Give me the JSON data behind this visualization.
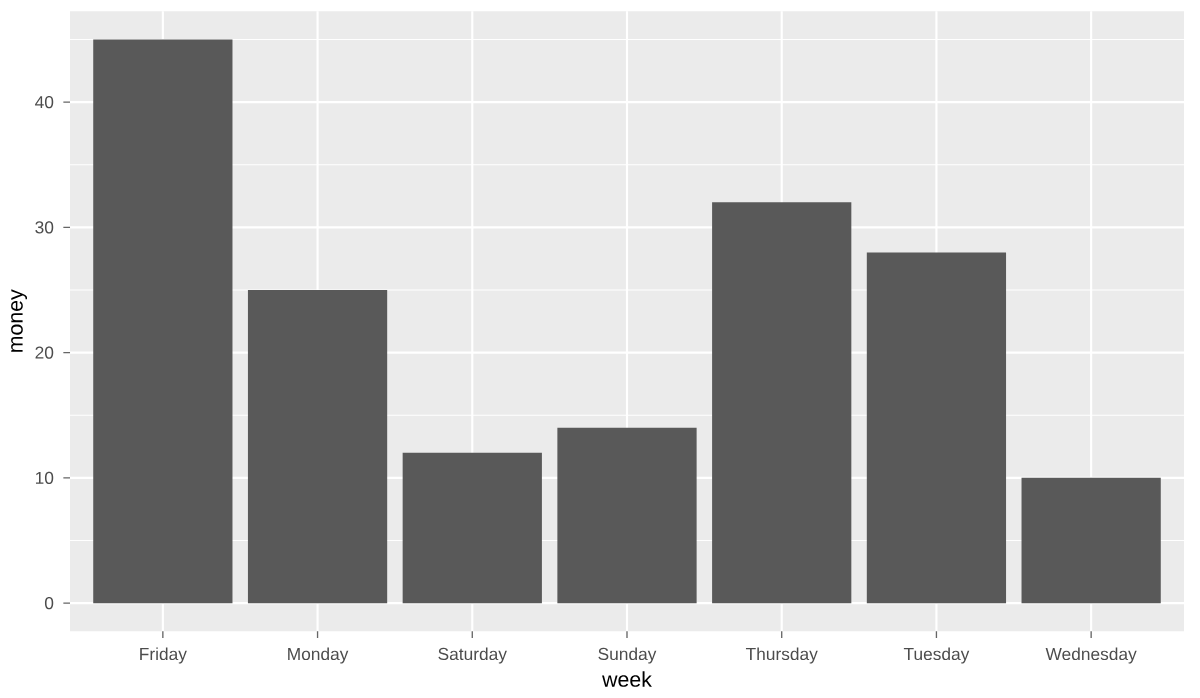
{
  "chart_data": {
    "type": "bar",
    "xlabel": "week",
    "ylabel": "money",
    "categories": [
      "Friday",
      "Monday",
      "Saturday",
      "Sunday",
      "Thursday",
      "Tuesday",
      "Wednesday"
    ],
    "values": [
      45,
      25,
      12,
      14,
      32,
      28,
      10
    ],
    "color": "#595959",
    "ylim": [
      -2.25,
      47.25
    ],
    "yticks": [
      0,
      10,
      20,
      30,
      40
    ],
    "grid": true
  }
}
